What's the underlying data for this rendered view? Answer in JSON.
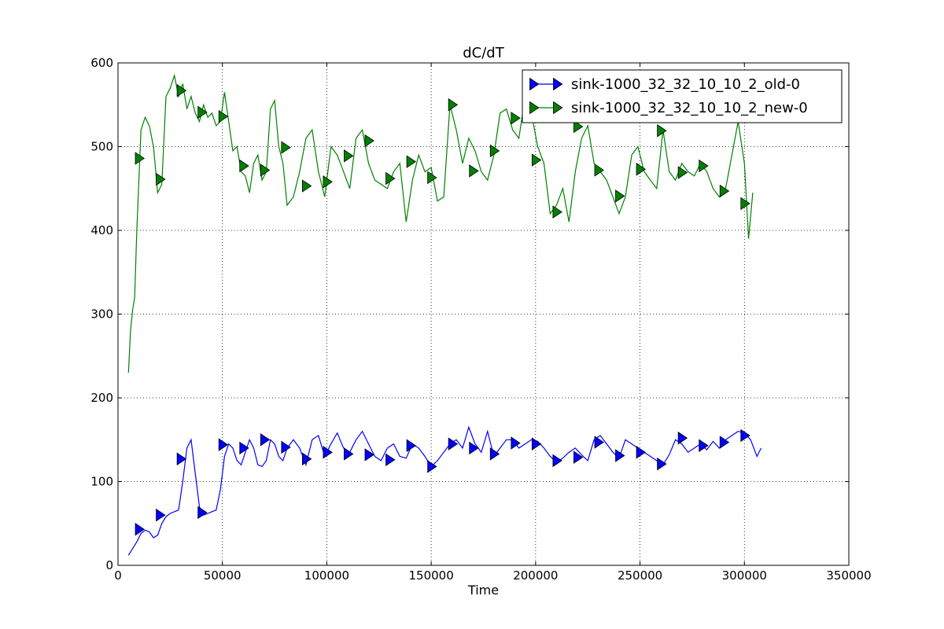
{
  "chart_data": {
    "type": "line",
    "title": "dC/dT",
    "xlabel": "Time",
    "ylabel": "",
    "xlim": [
      0,
      350000
    ],
    "ylim": [
      0,
      600
    ],
    "xticks": [
      0,
      50000,
      100000,
      150000,
      200000,
      250000,
      300000,
      350000
    ],
    "yticks": [
      0,
      100,
      200,
      300,
      400,
      500,
      600
    ],
    "grid": true,
    "legend_position": "top-right",
    "series": [
      {
        "name": "sink-1000_32_32_10_10_2_old-0",
        "color": "#0000ff",
        "marker": "triangle-right",
        "x": [
          5000,
          7000,
          9000,
          11000,
          13000,
          15000,
          17000,
          19000,
          21000,
          23000,
          25000,
          27000,
          29000,
          31000,
          33000,
          35000,
          37000,
          39000,
          41000,
          43000,
          45000,
          47000,
          49000,
          51000,
          53000,
          55000,
          57000,
          59000,
          61000,
          63000,
          65000,
          67000,
          69000,
          71000,
          73000,
          75000,
          77000,
          79000,
          81000,
          84000,
          87000,
          90000,
          93000,
          96000,
          99000,
          102000,
          105000,
          108000,
          111000,
          114000,
          117000,
          120000,
          123000,
          126000,
          129000,
          132000,
          135000,
          138000,
          141000,
          144000,
          147000,
          150000,
          153000,
          156000,
          159000,
          162000,
          165000,
          168000,
          171000,
          174000,
          177000,
          180000,
          183000,
          186000,
          189000,
          192000,
          195000,
          198000,
          201000,
          204000,
          207000,
          210000,
          213000,
          216000,
          219000,
          222000,
          225000,
          228000,
          231000,
          234000,
          237000,
          240000,
          243000,
          246000,
          249000,
          252000,
          255000,
          258000,
          261000,
          264000,
          267000,
          270000,
          273000,
          276000,
          279000,
          282000,
          285000,
          288000,
          291000,
          294000,
          297000,
          300000,
          303000,
          306000,
          308000
        ],
        "y": [
          12,
          20,
          28,
          38,
          42,
          40,
          33,
          36,
          50,
          58,
          62,
          64,
          66,
          100,
          140,
          150,
          110,
          70,
          60,
          62,
          64,
          66,
          90,
          130,
          145,
          140,
          125,
          120,
          135,
          150,
          140,
          120,
          118,
          125,
          150,
          145,
          130,
          125,
          140,
          150,
          140,
          120,
          150,
          155,
          130,
          145,
          158,
          140,
          135,
          150,
          160,
          145,
          130,
          125,
          140,
          145,
          130,
          128,
          145,
          140,
          130,
          118,
          125,
          135,
          145,
          150,
          140,
          165,
          145,
          135,
          160,
          130,
          140,
          150,
          150,
          140,
          145,
          150,
          148,
          140,
          130,
          123,
          128,
          135,
          140,
          132,
          125,
          150,
          155,
          145,
          135,
          128,
          150,
          145,
          140,
          135,
          130,
          125,
          120,
          132,
          150,
          145,
          135,
          140,
          145,
          138,
          148,
          140,
          150,
          155,
          160,
          158,
          150,
          130,
          140
        ],
        "marker_x": [
          10000,
          20000,
          30000,
          40000,
          50000,
          60000,
          70000,
          80000,
          90000,
          100000,
          110000,
          120000,
          130000,
          140000,
          150000,
          160000,
          170000,
          180000,
          190000,
          200000,
          210000,
          220000,
          230000,
          240000,
          250000,
          260000,
          270000,
          280000,
          290000,
          300000
        ],
        "marker_y": [
          43,
          60,
          127,
          63,
          144,
          140,
          150,
          141,
          127,
          135,
          133,
          132,
          126,
          143,
          118,
          145,
          140,
          133,
          146,
          145,
          125,
          129,
          147,
          131,
          135,
          121,
          152,
          143,
          147,
          155
        ]
      },
      {
        "name": "sink-1000_32_32_10_10_2_new-0",
        "color": "#008000",
        "marker": "triangle-right",
        "x": [
          5000,
          6000,
          7000,
          8000,
          9000,
          11000,
          13000,
          15000,
          17000,
          19000,
          21000,
          23000,
          25000,
          27000,
          29000,
          31000,
          33000,
          35000,
          37000,
          39000,
          41000,
          43000,
          45000,
          47000,
          49000,
          51000,
          53000,
          55000,
          57000,
          59000,
          61000,
          63000,
          65000,
          67000,
          69000,
          71000,
          73000,
          75000,
          77000,
          79000,
          81000,
          84000,
          87000,
          90000,
          93000,
          96000,
          99000,
          102000,
          105000,
          108000,
          111000,
          114000,
          117000,
          120000,
          123000,
          126000,
          129000,
          132000,
          135000,
          138000,
          141000,
          144000,
          147000,
          150000,
          153000,
          156000,
          159000,
          162000,
          165000,
          168000,
          171000,
          174000,
          177000,
          180000,
          183000,
          186000,
          189000,
          192000,
          195000,
          198000,
          201000,
          204000,
          207000,
          210000,
          213000,
          216000,
          219000,
          222000,
          225000,
          228000,
          231000,
          234000,
          237000,
          240000,
          243000,
          246000,
          249000,
          252000,
          255000,
          258000,
          261000,
          264000,
          267000,
          270000,
          273000,
          276000,
          279000,
          282000,
          285000,
          288000,
          291000,
          294000,
          297000,
          300000,
          302000,
          304000
        ],
        "y": [
          230,
          280,
          305,
          320,
          400,
          520,
          535,
          525,
          500,
          445,
          455,
          560,
          570,
          585,
          560,
          575,
          545,
          560,
          540,
          530,
          550,
          535,
          540,
          525,
          530,
          565,
          530,
          495,
          500,
          470,
          465,
          445,
          480,
          490,
          460,
          470,
          545,
          555,
          500,
          480,
          430,
          440,
          470,
          510,
          520,
          470,
          440,
          500,
          490,
          470,
          450,
          510,
          520,
          480,
          460,
          455,
          450,
          470,
          480,
          410,
          460,
          490,
          470,
          475,
          435,
          440,
          550,
          520,
          480,
          510,
          495,
          470,
          460,
          490,
          540,
          545,
          520,
          510,
          560,
          540,
          500,
          480,
          420,
          430,
          450,
          410,
          470,
          510,
          525,
          480,
          470,
          460,
          440,
          420,
          440,
          490,
          500,
          470,
          460,
          450,
          520,
          470,
          460,
          480,
          470,
          465,
          480,
          470,
          450,
          440,
          450,
          490,
          530,
          480,
          390,
          445
        ],
        "marker_x": [
          10000,
          20000,
          30000,
          40000,
          50000,
          60000,
          70000,
          80000,
          90000,
          100000,
          110000,
          120000,
          130000,
          140000,
          150000,
          160000,
          170000,
          180000,
          190000,
          200000,
          210000,
          220000,
          230000,
          240000,
          250000,
          260000,
          270000,
          280000,
          290000,
          300000
        ],
        "marker_y": [
          486,
          461,
          567,
          541,
          536,
          477,
          472,
          499,
          453,
          458,
          489,
          507,
          462,
          482,
          463,
          550,
          471,
          495,
          534,
          484,
          422,
          524,
          472,
          441,
          473,
          519,
          469,
          477,
          447,
          432
        ]
      }
    ]
  }
}
